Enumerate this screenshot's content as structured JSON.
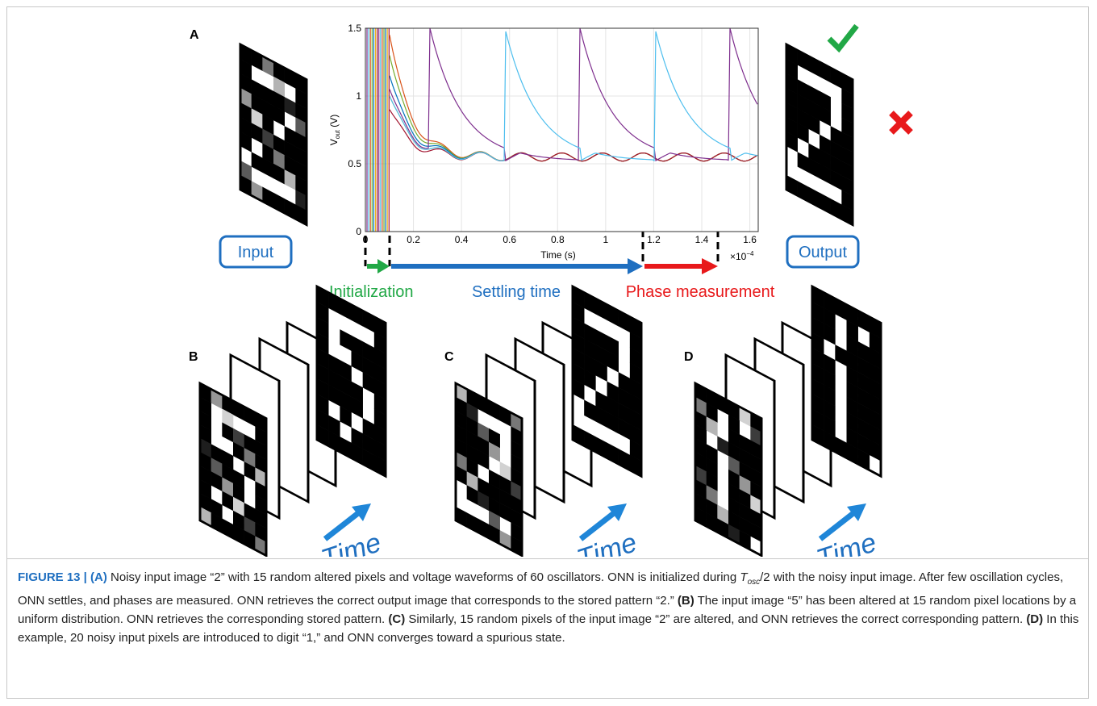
{
  "panel_a": {
    "label": "A",
    "chart": {
      "type": "line",
      "xlabel": "Time (s)",
      "ylabel": "V",
      "ylabel_sub": "out",
      "ylabel_unit": " (V)",
      "xlim": [
        0,
        1.635
      ],
      "ylim": [
        0,
        1.5
      ],
      "xticks": [
        0,
        0.2,
        0.4,
        0.6,
        0.8,
        1,
        1.2,
        1.4,
        1.6
      ],
      "yticks": [
        0,
        0.5,
        1,
        1.5
      ],
      "x_multiplier": "×10",
      "x_exponent": "−4",
      "grid": true
    },
    "tosc": "T",
    "tosc_sub": "osc",
    "tosc_den": "2",
    "input": "Input",
    "output": "Output",
    "phases": [
      "Initialization",
      "Settling time",
      "Phase measurement"
    ]
  },
  "panels": [
    {
      "label": "B",
      "time": "Time"
    },
    {
      "label": "C",
      "time": "Time"
    },
    {
      "label": "D",
      "time": "Time"
    }
  ],
  "caption": {
    "parts": [
      "FIGURE 13 | (A)",
      " Noisy input image “2” with 15 random altered pixels and voltage waveforms of 60 oscillators. ONN is initialized during ",
      "T",
      "osc",
      "/2 with the noisy input image. After few oscillation cycles, ONN settles, and phases are measured. ONN retrieves the correct output image that corresponds to the stored pattern “2.” ",
      "(B)",
      " The input image “5” has been altered at 15 random pixel locations by a uniform distribution. ONN retrieves the corresponding stored pattern. ",
      "(C)",
      " Similarly, 15 random pixels of the input image “2” are altered, and ONN retrieves the correct corresponding pattern. ",
      "(D)",
      " In this example, 20 noisy input pixels are introduced to digit “1,” and ONN converges toward a spurious state."
    ]
  }
}
